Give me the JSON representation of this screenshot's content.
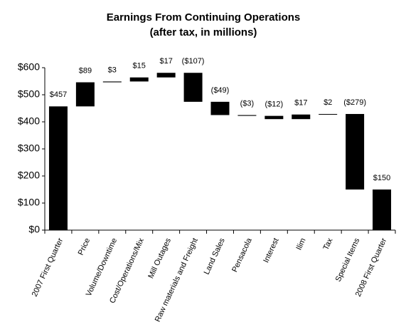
{
  "chart_data": {
    "type": "waterfall",
    "title": "Earnings From Continuing Operations",
    "subtitle": "(after tax, in millions)",
    "categories": [
      "2007 First Quarter",
      "Price",
      "Volume/Downtime",
      "Cost/Operations/Mix",
      "Mill Outages",
      "Raw materials and Freight",
      "Land Sales",
      "Pensacola",
      "Interest",
      "Ilim",
      "Tax",
      "Special Items",
      "2008 First Quarter"
    ],
    "values": [
      457,
      89,
      3,
      15,
      17,
      -107,
      -49,
      -3,
      -12,
      17,
      2,
      -279,
      150
    ],
    "value_labels": [
      "$457",
      "$89",
      "$3",
      "$15",
      "$17",
      "($107)",
      "($49)",
      "($3)",
      "($12)",
      "$17",
      "$2",
      "($279)",
      "$150"
    ],
    "is_total": [
      true,
      false,
      false,
      false,
      false,
      false,
      false,
      false,
      false,
      false,
      false,
      false,
      true
    ],
    "color": "#000000",
    "ylim": [
      0,
      600
    ],
    "yticks": [
      {
        "value": 0,
        "label": "$0"
      },
      {
        "value": 100,
        "label": "$100"
      },
      {
        "value": 200,
        "label": "$200"
      },
      {
        "value": 300,
        "label": "$300"
      },
      {
        "value": 400,
        "label": "$400"
      },
      {
        "value": 500,
        "label": "$500"
      },
      {
        "value": 600,
        "label": "$600"
      }
    ],
    "grid": false
  }
}
